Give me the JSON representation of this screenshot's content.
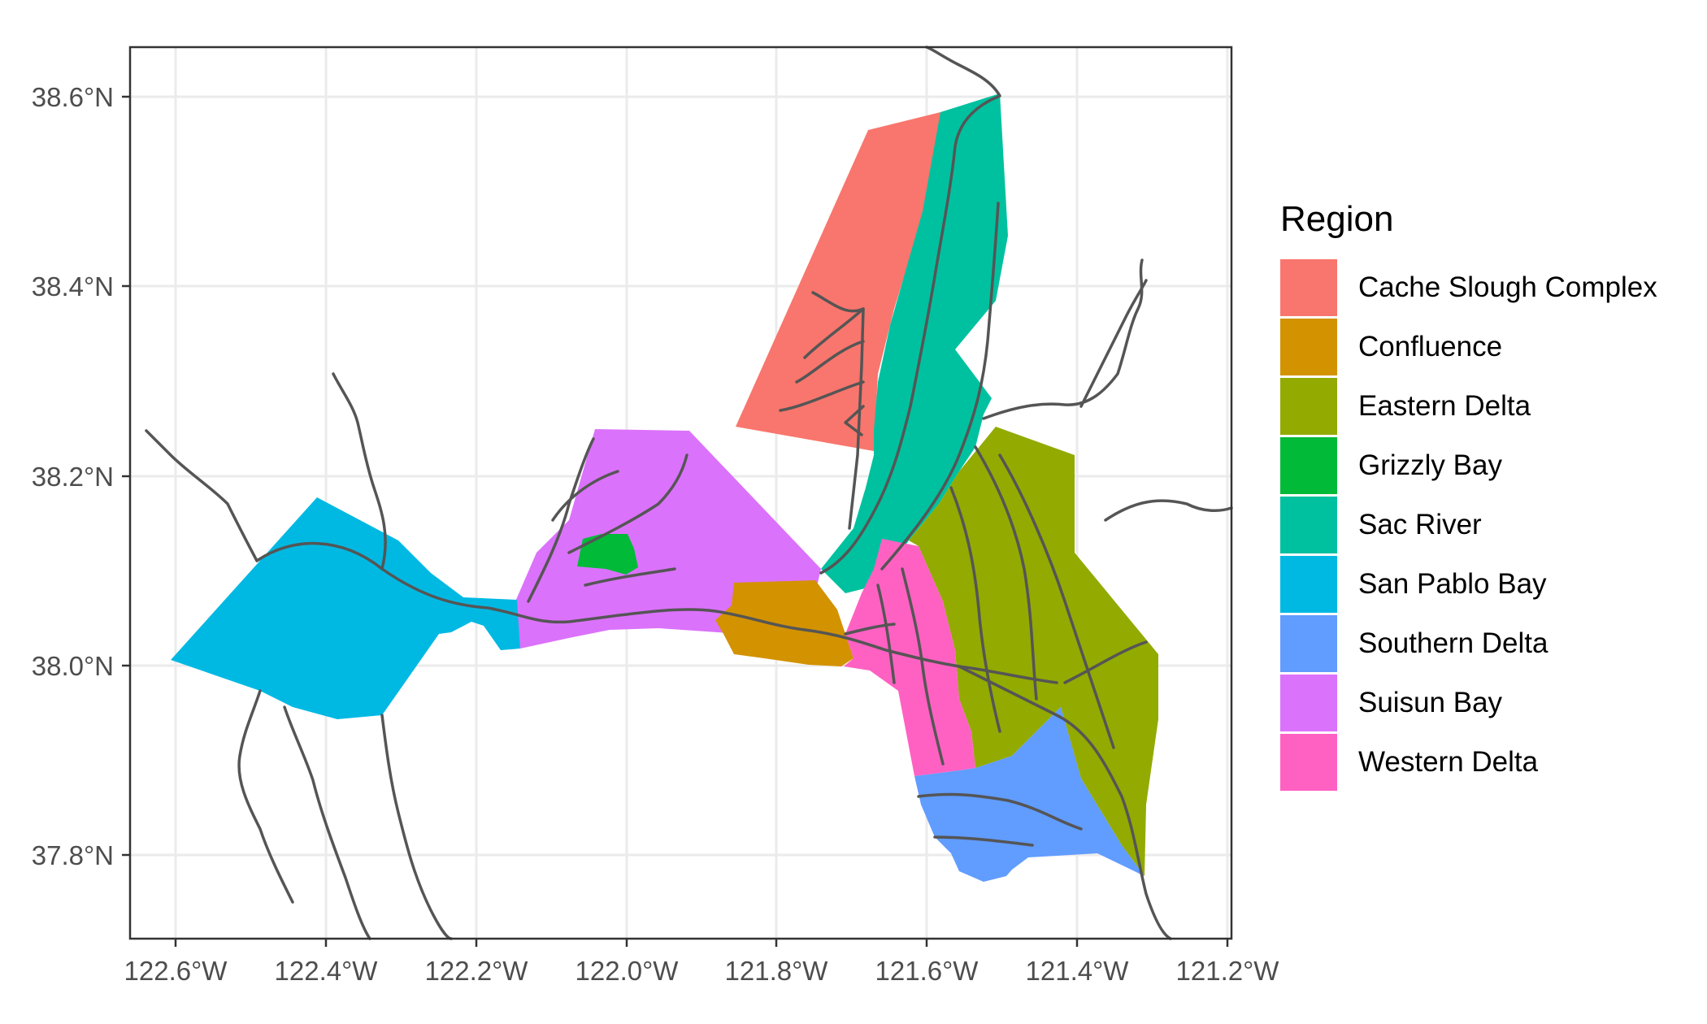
{
  "map": {
    "x_axis": {
      "ticks": [
        "122.6°W",
        "122.4°W",
        "122.2°W",
        "122.0°W",
        "121.8°W",
        "121.6°W",
        "121.4°W",
        "121.2°W"
      ]
    },
    "y_axis": {
      "ticks": [
        "38.6°N",
        "38.4°N",
        "38.2°N",
        "38.0°N",
        "37.8°N"
      ]
    },
    "legend": {
      "title": "Region",
      "placement": "right",
      "items": [
        {
          "label": "Cache Slough Complex",
          "color": "#F8766D"
        },
        {
          "label": "Confluence",
          "color": "#D39200"
        },
        {
          "label": "Eastern Delta",
          "color": "#93AA00"
        },
        {
          "label": "Grizzly Bay",
          "color": "#00BA38"
        },
        {
          "label": "Sac River",
          "color": "#00C19F"
        },
        {
          "label": "San Pablo Bay",
          "color": "#00B9E3"
        },
        {
          "label": "Southern Delta",
          "color": "#619CFF"
        },
        {
          "label": "Suisun Bay",
          "color": "#DB72FB"
        },
        {
          "label": "Western Delta",
          "color": "#FF61C3"
        }
      ]
    },
    "style": {
      "panel_border": "#333333",
      "grid_color": "#EBEBEB",
      "waterway_color": "#555555"
    }
  }
}
